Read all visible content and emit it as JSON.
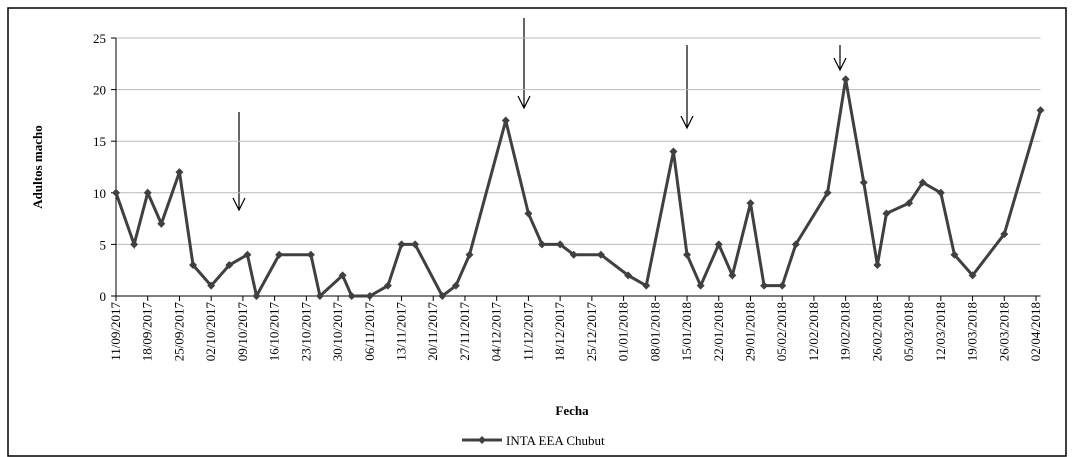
{
  "chart_data": {
    "type": "line",
    "y_label": "Adultos macho",
    "x_label": "Fecha",
    "x": [
      "11/09/2017",
      "15/09/2017",
      "18/09/2017",
      "21/09/2017",
      "25/09/2017",
      "28/09/2017",
      "02/10/2017",
      "06/10/2017",
      "10/10/2017",
      "12/10/2017",
      "17/10/2017",
      "24/10/2017",
      "26/10/2017",
      "31/10/2017",
      "02/11/2017",
      "06/11/2017",
      "10/11/2017",
      "13/11/2017",
      "16/11/2017",
      "22/11/2017",
      "25/11/2017",
      "28/11/2017",
      "06/12/2017",
      "11/12/2017",
      "14/12/2017",
      "18/12/2017",
      "21/12/2017",
      "27/12/2017",
      "02/01/2018",
      "06/01/2018",
      "12/01/2018",
      "15/01/2018",
      "18/01/2018",
      "22/01/2018",
      "25/01/2018",
      "29/01/2018",
      "01/02/2018",
      "05/02/2018",
      "08/02/2018",
      "15/02/2018",
      "19/02/2018",
      "23/02/2018",
      "26/02/2018",
      "28/02/2018",
      "05/03/2018",
      "08/03/2018",
      "12/03/2018",
      "15/03/2018",
      "19/03/2018",
      "26/03/2018",
      "03/04/2018"
    ],
    "series": [
      {
        "name": "INTA EEA Chubut",
        "color": "#404040",
        "values": [
          10,
          5,
          10,
          7,
          12,
          3,
          1,
          3,
          4,
          0,
          4,
          4,
          0,
          2,
          0,
          0,
          1,
          5,
          5,
          0,
          1,
          4,
          17,
          8,
          5,
          5,
          4,
          4,
          2,
          1,
          14,
          4,
          1,
          5,
          2,
          9,
          1,
          1,
          5,
          10,
          21,
          11,
          3,
          8,
          9,
          11,
          10,
          4,
          2,
          6,
          18
        ]
      }
    ],
    "xlim": [
      "11/09/2017",
      "03/04/2018"
    ],
    "xticks": [
      "11/09/2017",
      "18/09/2017",
      "25/09/2017",
      "02/10/2017",
      "09/10/2017",
      "16/10/2017",
      "23/10/2017",
      "30/10/2017",
      "06/11/2017",
      "13/11/2017",
      "20/11/2017",
      "27/11/2017",
      "04/12/2017",
      "11/12/2017",
      "18/12/2017",
      "25/12/2017",
      "01/01/2018",
      "08/01/2018",
      "15/01/2018",
      "22/01/2018",
      "29/01/2018",
      "05/02/2018",
      "12/02/2018",
      "19/02/2018",
      "26/02/2018",
      "05/03/2018",
      "12/03/2018",
      "19/03/2018",
      "26/03/2018",
      "02/04/2018"
    ],
    "ylim": [
      0,
      25
    ],
    "yticks": [
      0,
      5,
      10,
      15,
      20,
      25
    ],
    "grid": true
  }
}
